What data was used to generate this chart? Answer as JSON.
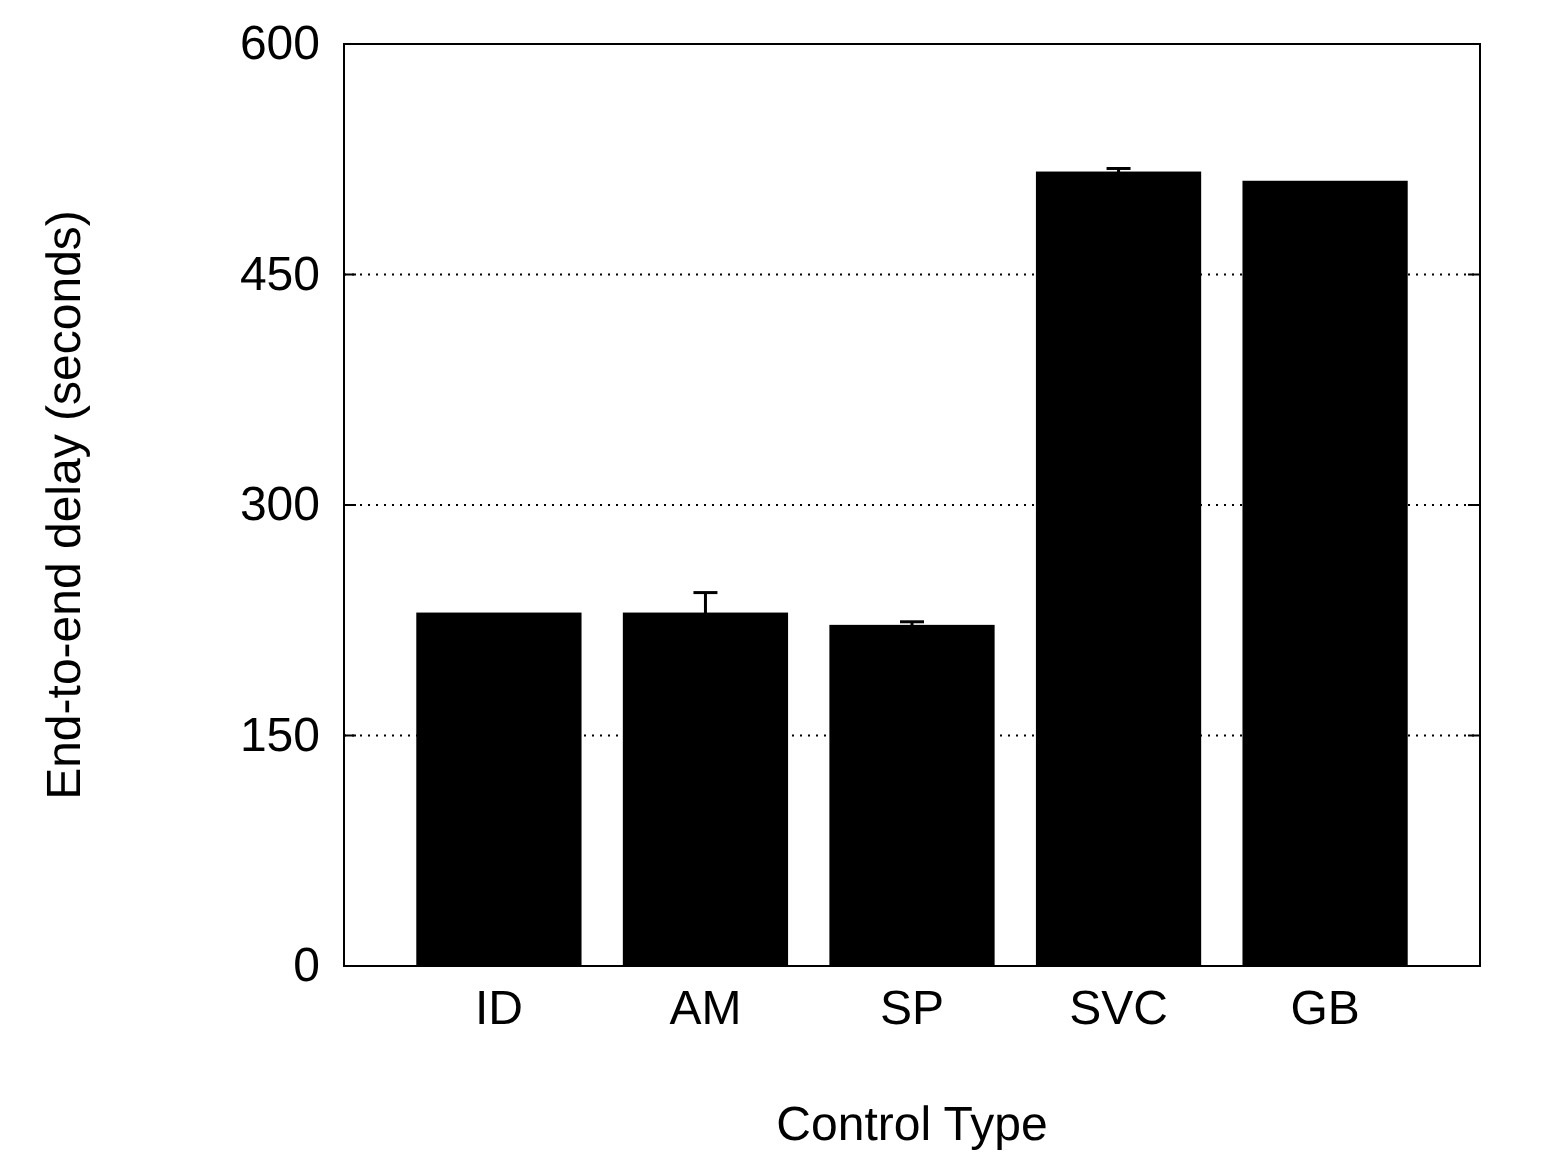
{
  "chart_data": {
    "type": "bar",
    "xlabel": "Control Type",
    "ylabel": "End-to-end delay (seconds)",
    "categories": [
      "ID",
      "AM",
      "SP",
      "SVC",
      "GB"
    ],
    "values": [
      230,
      230,
      222,
      517,
      511
    ],
    "errors": [
      null,
      13,
      2,
      2,
      null
    ],
    "color": "#000000",
    "ylim": [
      0,
      600
    ],
    "yticks": [
      0,
      150,
      300,
      450,
      600
    ],
    "grid": "y"
  }
}
